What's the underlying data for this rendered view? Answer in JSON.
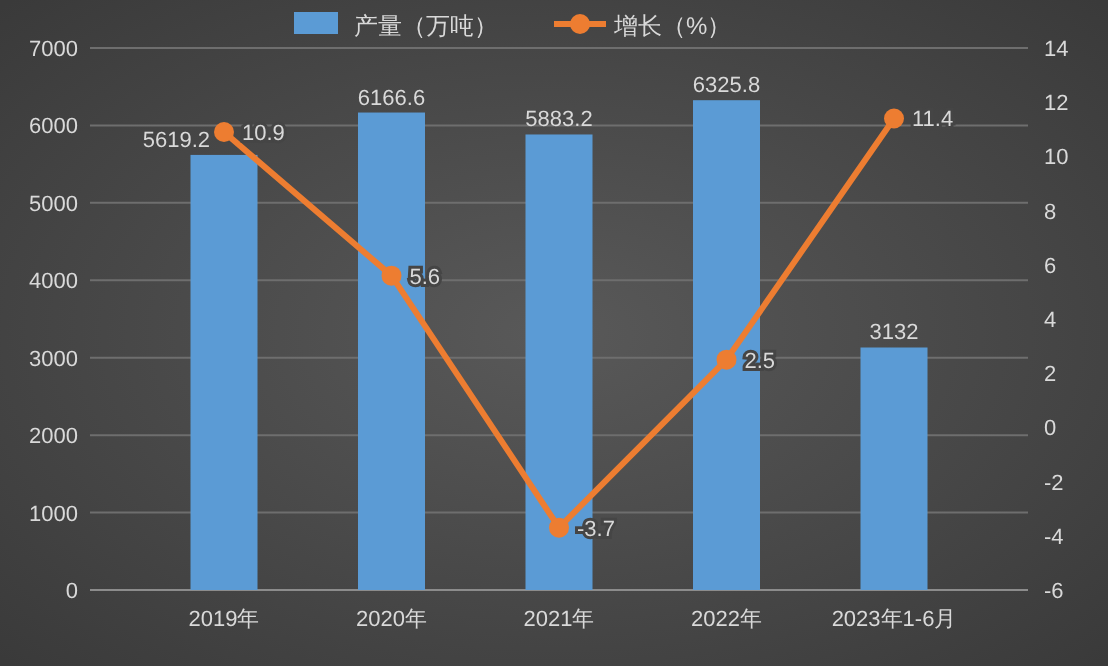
{
  "chart_data": {
    "type": "bar",
    "categories": [
      "2019年",
      "2020年",
      "2021年",
      "2022年",
      "2023年1-6月"
    ],
    "series": [
      {
        "name": "产量（万吨）",
        "color": "#5b9bd5",
        "values": [
          5619.2,
          6166.6,
          5883.2,
          6325.8,
          3132
        ]
      },
      {
        "name": "增长（%）",
        "type": "line",
        "axis": "y2",
        "color": "#ed7d31",
        "values": [
          10.9,
          5.6,
          -3.7,
          2.5,
          11.4
        ]
      }
    ],
    "ylim": [
      0,
      7000
    ],
    "yticks": [
      0,
      1000,
      2000,
      3000,
      4000,
      5000,
      6000,
      7000
    ],
    "y2lim": [
      -6,
      14
    ],
    "y2ticks": [
      -6,
      -4,
      -2,
      0,
      2,
      4,
      6,
      8,
      10,
      12,
      14
    ],
    "grid": "y",
    "legend": "top",
    "marker": "circle",
    "data_labels": true
  }
}
